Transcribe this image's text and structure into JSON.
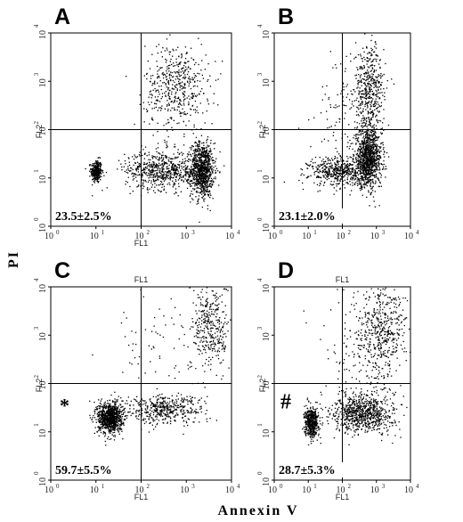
{
  "figure": {
    "x_axis_title": "Annexin V",
    "y_axis_title": "PI",
    "colors": {
      "dots": "#000000",
      "frame": "#000000",
      "background": "#ffffff"
    }
  },
  "chart_data": [
    {
      "type": "scatter",
      "panel": "A",
      "xlabel": "FL1",
      "ylabel": "FL2",
      "top_label": "",
      "x_scale": "log",
      "y_scale": "log",
      "xlim": [
        1,
        10000
      ],
      "ylim": [
        1,
        10000
      ],
      "x_ticks": [
        "10",
        "10",
        "10",
        "10",
        "10"
      ],
      "x_tick_exponents": [
        "0",
        "1",
        "2",
        "3",
        "4"
      ],
      "y_ticks": [
        "10",
        "10",
        "10",
        "10",
        "10"
      ],
      "y_tick_exponents": [
        "0",
        "1",
        "2",
        "3",
        "4"
      ],
      "quadrant_gate": {
        "x": 100,
        "y": 100
      },
      "annotation": "23.5±2.5%",
      "marker": "",
      "clusters": [
        {
          "x": 10,
          "y": 14,
          "sx": 0.06,
          "sy": 0.12,
          "n": 300
        },
        {
          "x": 2200,
          "y": 15,
          "sx": 0.13,
          "sy": 0.28,
          "n": 900
        },
        {
          "x": 300,
          "y": 15,
          "sx": 0.42,
          "sy": 0.2,
          "n": 650
        },
        {
          "x": 600,
          "y": 800,
          "sx": 0.35,
          "sy": 0.45,
          "n": 500
        }
      ]
    },
    {
      "type": "scatter",
      "panel": "B",
      "xlabel": "",
      "ylabel": "FL2",
      "top_label": "",
      "x_scale": "log",
      "y_scale": "log",
      "xlim": [
        1,
        10000
      ],
      "ylim": [
        1,
        10000
      ],
      "x_ticks": [
        "10",
        "10",
        "10",
        "10",
        "10"
      ],
      "x_tick_exponents": [
        "0",
        "1",
        "2",
        "3",
        "4"
      ],
      "y_ticks": [
        "10",
        "10",
        "10",
        "10",
        "10"
      ],
      "y_tick_exponents": [
        "0",
        "1",
        "2",
        "3",
        "4"
      ],
      "quadrant_gate": {
        "x": 100,
        "y": 100
      },
      "annotation": "23.1±2.0%",
      "marker": "",
      "clusters": [
        {
          "x": 550,
          "y": 25,
          "sx": 0.2,
          "sy": 0.28,
          "n": 1000
        },
        {
          "x": 80,
          "y": 14,
          "sx": 0.45,
          "sy": 0.15,
          "n": 500
        },
        {
          "x": 600,
          "y": 600,
          "sx": 0.22,
          "sy": 0.5,
          "n": 500
        },
        {
          "x": 150,
          "y": 300,
          "sx": 0.5,
          "sy": 0.6,
          "n": 120
        }
      ]
    },
    {
      "type": "scatter",
      "panel": "C",
      "xlabel": "FL1",
      "ylabel": "FL2",
      "top_label": "FL1",
      "x_scale": "log",
      "y_scale": "log",
      "xlim": [
        1,
        10000
      ],
      "ylim": [
        1,
        10000
      ],
      "x_ticks": [
        "10",
        "10",
        "10",
        "10",
        "10"
      ],
      "x_tick_exponents": [
        "0",
        "1",
        "2",
        "3",
        "4"
      ],
      "y_ticks": [
        "10",
        "10",
        "10",
        "10",
        "10"
      ],
      "y_tick_exponents": [
        "0",
        "1",
        "2",
        "3",
        "4"
      ],
      "quadrant_gate": {
        "x": 100,
        "y": 100
      },
      "annotation": "59.7±5.5%",
      "marker": "*",
      "clusters": [
        {
          "x": 20,
          "y": 20,
          "sx": 0.14,
          "sy": 0.16,
          "n": 900
        },
        {
          "x": 300,
          "y": 30,
          "sx": 0.45,
          "sy": 0.15,
          "n": 450
        },
        {
          "x": 3500,
          "y": 1500,
          "sx": 0.2,
          "sy": 0.45,
          "n": 350
        },
        {
          "x": 300,
          "y": 500,
          "sx": 0.6,
          "sy": 0.6,
          "n": 80
        }
      ]
    },
    {
      "type": "scatter",
      "panel": "D",
      "xlabel": "FL1",
      "ylabel": "FL2",
      "top_label": "FL1",
      "x_scale": "log",
      "y_scale": "log",
      "xlim": [
        1,
        10000
      ],
      "ylim": [
        1,
        10000
      ],
      "x_ticks": [
        "10",
        "10",
        "10",
        "10",
        "10"
      ],
      "x_tick_exponents": [
        "0",
        "1",
        "2",
        "3",
        "4"
      ],
      "y_ticks": [
        "10",
        "10",
        "10",
        "10",
        "10"
      ],
      "y_tick_exponents": [
        "0",
        "1",
        "2",
        "3",
        "4"
      ],
      "quadrant_gate": {
        "x": 100,
        "y": 100
      },
      "annotation": "28.7±5.3%",
      "marker": "#",
      "clusters": [
        {
          "x": 12,
          "y": 16,
          "sx": 0.1,
          "sy": 0.15,
          "n": 500
        },
        {
          "x": 400,
          "y": 25,
          "sx": 0.45,
          "sy": 0.2,
          "n": 800
        },
        {
          "x": 1500,
          "y": 1200,
          "sx": 0.35,
          "sy": 0.5,
          "n": 450
        },
        {
          "x": 300,
          "y": 500,
          "sx": 0.6,
          "sy": 0.6,
          "n": 150
        }
      ]
    }
  ]
}
